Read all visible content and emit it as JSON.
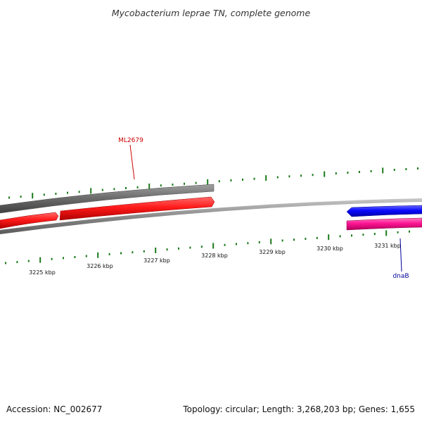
{
  "title": "Mycobacterium leprae TN, complete genome",
  "footer": {
    "accession": "Accession: NC_002677",
    "summary": "Topology: circular; Length: 3,268,203 bp; Genes: 1,655"
  },
  "ruler": {
    "labels": [
      "3225 kbp",
      "3226 kbp",
      "3227 kbp",
      "3228 kbp",
      "3229 kbp",
      "3230 kbp",
      "3231 kbp"
    ],
    "tick_color": "#1a7a1a"
  },
  "features": {
    "colors": {
      "backbone": "#8a8a8a",
      "forward_track": "#6e6e6e",
      "red_gene": "#ff1a1a",
      "blue_gene": "#0a0aff",
      "pink_gene": "#ff1493"
    }
  },
  "labels": [
    {
      "text": "ML2679",
      "color": "#cc0000"
    },
    {
      "text": "dnaB",
      "color": "#000099"
    }
  ]
}
